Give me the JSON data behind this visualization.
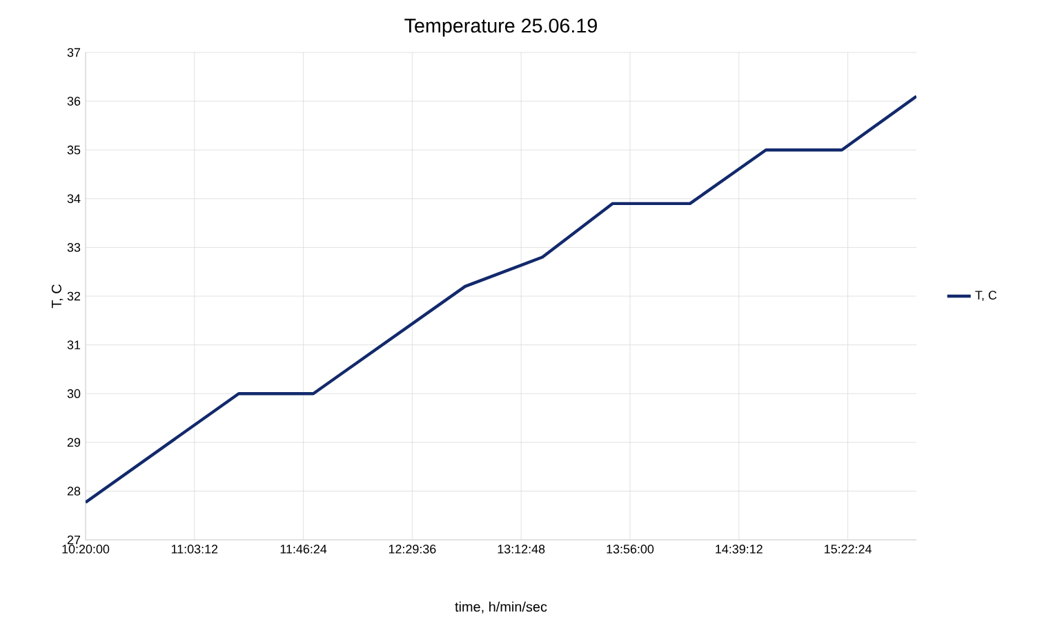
{
  "chart_data": {
    "type": "line",
    "title": "Temperature 25.06.19",
    "xlabel": "time, h/min/sec",
    "ylabel": "T, C",
    "x": [
      10.3333,
      11.346,
      11.839,
      12.843,
      13.354,
      13.819,
      14.33,
      14.832,
      15.334,
      15.827
    ],
    "series": [
      {
        "name": "T, C",
        "color": "#12296b",
        "values": [
          27.77,
          30.0,
          30.0,
          32.2,
          32.8,
          33.9,
          33.9,
          35.0,
          35.0,
          36.1
        ]
      }
    ],
    "xlim": [
      10.3333,
      15.827
    ],
    "xticks": [
      {
        "value": 10.3333,
        "label": "10:20:00"
      },
      {
        "value": 11.0533,
        "label": "11:03:12"
      },
      {
        "value": 11.7733,
        "label": "11:46:24"
      },
      {
        "value": 12.4933,
        "label": "12:29:36"
      },
      {
        "value": 13.2133,
        "label": "13:12:48"
      },
      {
        "value": 13.9333,
        "label": "13:56:00"
      },
      {
        "value": 14.6533,
        "label": "14:39:12"
      },
      {
        "value": 15.3733,
        "label": "15:22:24"
      }
    ],
    "ylim": [
      27,
      37
    ],
    "yticks": [
      27,
      28,
      29,
      30,
      31,
      32,
      33,
      34,
      35,
      36,
      37
    ],
    "grid": true,
    "legend": "right",
    "marker": "none",
    "line_style": "solid"
  }
}
